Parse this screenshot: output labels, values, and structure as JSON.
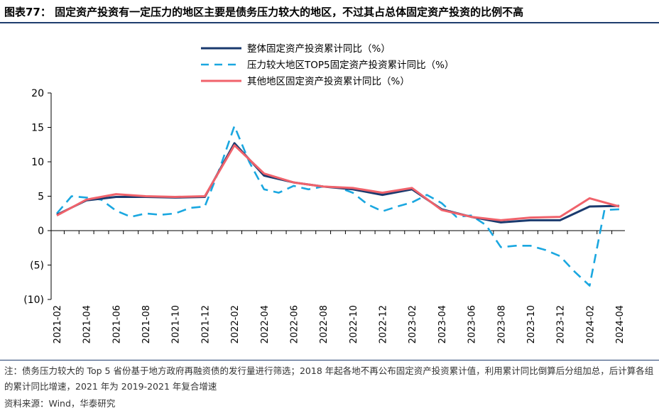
{
  "title": "图表77：  固定资产投资有一定压力的地区主要是债务压力较大的地区，不过其占总体固定资产投资的比例不高",
  "note": "注：债务压力较大的 Top 5 省份基于地方政府再融资债的发行量进行筛选；2018 年起各地不再公布固定资产投资累计值，利用累计同比倒算后分组加总，后计算各组的累计同比增速，2021 年为 2019-2021 年复合增速",
  "source": "资料来源：Wind，华泰研究",
  "chart_data": {
    "type": "line",
    "x": [
      "2021-02",
      "2021-03",
      "2021-04",
      "2021-05",
      "2021-06",
      "2021-07",
      "2021-08",
      "2021-09",
      "2021-10",
      "2021-11",
      "2021-12",
      "2022-01",
      "2022-02",
      "2022-03",
      "2022-04",
      "2022-05",
      "2022-06",
      "2022-07",
      "2022-08",
      "2022-09",
      "2022-10",
      "2022-11",
      "2022-12",
      "2023-01",
      "2023-02",
      "2023-03",
      "2023-04",
      "2023-05",
      "2023-06",
      "2023-07",
      "2023-08",
      "2023-09",
      "2023-10",
      "2023-11",
      "2023-12",
      "2024-01",
      "2024-02",
      "2024-03",
      "2024-04"
    ],
    "x_tick_labels": [
      "2021-02",
      "2021-04",
      "2021-06",
      "2021-08",
      "2021-10",
      "2021-12",
      "2022-02",
      "2022-04",
      "2022-06",
      "2022-08",
      "2022-10",
      "2022-12",
      "2023-02",
      "2023-04",
      "2023-06",
      "2023-08",
      "2023-10",
      "2023-12",
      "2024-02",
      "2024-04"
    ],
    "ylim": [
      -10,
      20
    ],
    "y_ticks": [
      -10,
      -5,
      0,
      5,
      10,
      15,
      20
    ],
    "y_tick_labels": [
      "(10)",
      "(5)",
      "0",
      "5",
      "10",
      "15",
      "20"
    ],
    "legend_position": "top-center",
    "series": [
      {
        "name": "整体固定资产投资累计同比（%）",
        "color": "#1a3a6e",
        "style": "solid",
        "values": [
          2.3,
          null,
          4.4,
          null,
          4.9,
          null,
          4.9,
          null,
          4.8,
          null,
          4.9,
          null,
          12.7,
          null,
          8.0,
          null,
          7.0,
          null,
          6.4,
          null,
          6.0,
          null,
          5.2,
          null,
          6.0,
          null,
          3.1,
          null,
          2.0,
          null,
          1.2,
          null,
          1.5,
          null,
          1.5,
          null,
          3.5,
          null,
          3.6
        ]
      },
      {
        "name": "压力较大地区TOP5固定资产投资累计同比（%）",
        "color": "#1aa7e0",
        "style": "dashed",
        "values": [
          2.5,
          5.0,
          4.8,
          4.5,
          2.9,
          2.0,
          2.5,
          2.3,
          2.5,
          3.3,
          3.5,
          9.0,
          15.2,
          10.0,
          6.0,
          5.5,
          6.5,
          6.0,
          6.4,
          6.3,
          5.5,
          3.8,
          2.8,
          3.5,
          4.1,
          5.2,
          4.0,
          2.0,
          2.2,
          0.8,
          -2.4,
          -2.2,
          -2.2,
          -2.8,
          -3.7,
          -6.0,
          -8.0,
          3.0,
          3.1
        ]
      },
      {
        "name": "其他地区固定资产投资累计同比（%）",
        "color": "#f0626b",
        "style": "solid",
        "values": [
          2.2,
          null,
          4.5,
          null,
          5.3,
          null,
          5.0,
          null,
          4.9,
          null,
          5.0,
          null,
          12.4,
          null,
          8.3,
          null,
          7.0,
          null,
          6.4,
          null,
          6.2,
          null,
          5.5,
          null,
          6.2,
          null,
          3.0,
          null,
          2.0,
          null,
          1.5,
          null,
          1.9,
          null,
          2.0,
          null,
          4.7,
          null,
          3.5
        ]
      }
    ]
  }
}
